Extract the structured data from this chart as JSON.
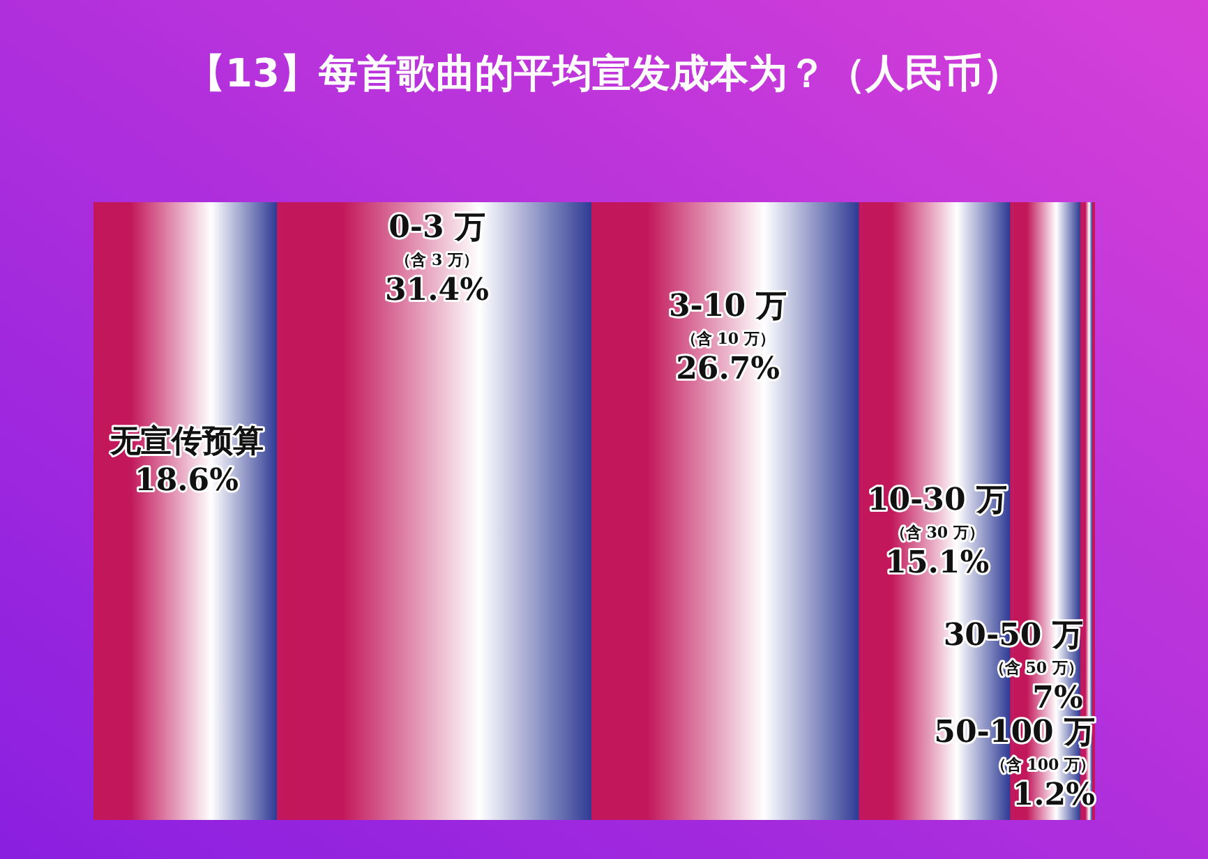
{
  "chart_data": {
    "type": "bar",
    "title": "【13】每首歌曲的平均宣发成本为？（人民币）",
    "orientation": "horizontal",
    "stacked": true,
    "categories": [
      null
    ],
    "series": [
      {
        "name": "无宣传预算",
        "color": "#c2185b",
        "values": [
          18.6
        ],
        "value_labels": [
          "18.6%"
        ]
      },
      {
        "name": "0-3 万（含 3 万）",
        "color": "#c2185b",
        "values": [
          31.4
        ],
        "value_labels": [
          "31.4%"
        ]
      },
      {
        "name": "3-10 万（含 10 万）",
        "color": "#c2185b",
        "values": [
          26.7
        ],
        "value_labels": [
          "26.7%"
        ]
      },
      {
        "name": "10-30 万（含 30 万）",
        "color": "#c2185b",
        "values": [
          15.1
        ],
        "value_labels": [
          "15.1%"
        ]
      },
      {
        "name": "30-50 万（含 50 万）",
        "color": "#c2185b",
        "values": [
          7
        ],
        "value_labels": [
          "7%"
        ]
      },
      {
        "name": "50-100 万（含 100 万）",
        "color": "#c2185b",
        "values": [
          1.2
        ],
        "value_labels": [
          "1.2%"
        ]
      }
    ]
  }
}
